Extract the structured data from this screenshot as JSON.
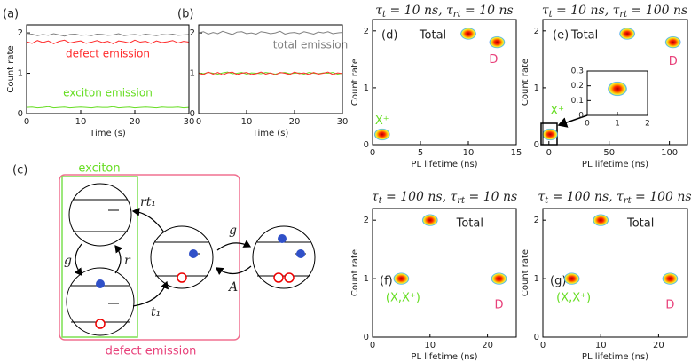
{
  "chart_data": [
    {
      "type": "line",
      "panel_label": "(a)",
      "xlabel": "Time (s)",
      "ylabel": "Count rate",
      "xlim": [
        0,
        30
      ],
      "ylim": [
        0,
        2.2
      ],
      "xticks": [
        0,
        10,
        20,
        30
      ],
      "yticks": [
        0,
        1,
        2
      ],
      "x": [
        0,
        1,
        2,
        3,
        4,
        5,
        6,
        7,
        8,
        9,
        10,
        11,
        12,
        13,
        14,
        15,
        16,
        17,
        18,
        19,
        20,
        21,
        22,
        23,
        24,
        25,
        26,
        27,
        28,
        29,
        30
      ],
      "series": [
        {
          "color": "#808080",
          "values": [
            1.95,
            1.97,
            1.93,
            1.96,
            1.94,
            1.98,
            1.95,
            1.92,
            1.96,
            1.97,
            1.94,
            1.95,
            1.93,
            1.97,
            1.96,
            1.94,
            1.95,
            1.98,
            1.93,
            1.95,
            1.96,
            1.94,
            1.97,
            1.95,
            1.93,
            1.96,
            1.95,
            1.97,
            1.94,
            1.95,
            1.96
          ]
        },
        {
          "name": "defect emission",
          "color": "#ff2a2a",
          "values": [
            1.78,
            1.74,
            1.81,
            1.76,
            1.8,
            1.73,
            1.79,
            1.82,
            1.75,
            1.78,
            1.8,
            1.74,
            1.77,
            1.81,
            1.76,
            1.79,
            1.73,
            1.8,
            1.78,
            1.75,
            1.82,
            1.77,
            1.79,
            1.74,
            1.8,
            1.76,
            1.78,
            1.81,
            1.75,
            1.79,
            1.77
          ]
        },
        {
          "name": "exciton emission",
          "color": "#66dd22",
          "values": [
            0.15,
            0.16,
            0.14,
            0.15,
            0.17,
            0.14,
            0.15,
            0.16,
            0.14,
            0.15,
            0.16,
            0.15,
            0.14,
            0.16,
            0.15,
            0.15,
            0.17,
            0.14,
            0.15,
            0.16,
            0.14,
            0.15,
            0.16,
            0.15,
            0.14,
            0.16,
            0.15,
            0.15,
            0.16,
            0.14,
            0.15
          ]
        }
      ]
    },
    {
      "type": "line",
      "panel_label": "(b)",
      "xlabel": "Time (s)",
      "xlim": [
        0,
        30
      ],
      "ylim": [
        0,
        2.2
      ],
      "xticks": [
        0,
        10,
        20,
        30
      ],
      "yticks": [
        0,
        1,
        2
      ],
      "x": [
        0,
        1,
        2,
        3,
        4,
        5,
        6,
        7,
        8,
        9,
        10,
        11,
        12,
        13,
        14,
        15,
        16,
        17,
        18,
        19,
        20,
        21,
        22,
        23,
        24,
        25,
        26,
        27,
        28,
        29,
        30
      ],
      "series": [
        {
          "name": "total emission",
          "color": "#808080",
          "values": [
            2.0,
            2.03,
            1.97,
            2.01,
            1.98,
            2.04,
            2.0,
            1.96,
            2.02,
            2.03,
            1.98,
            2.0,
            1.97,
            2.03,
            2.01,
            1.98,
            2.0,
            2.04,
            1.97,
            2.0,
            2.01,
            1.98,
            2.03,
            2.0,
            1.97,
            2.02,
            2.0,
            2.03,
            1.98,
            2.0,
            2.01
          ]
        },
        {
          "color": "#66dd22",
          "values": [
            1.01,
            0.99,
            1.02,
            1.0,
            0.98,
            1.01,
            1.03,
            0.99,
            1.0,
            1.02,
            0.98,
            1.01,
            1.0,
            0.99,
            1.02,
            1.0,
            0.98,
            1.01,
            1.02,
            0.99,
            1.0,
            1.01,
            0.98,
            1.02,
            1.0,
            0.99,
            1.01,
            1.0,
            1.02,
            0.98,
            1.0
          ]
        },
        {
          "color": "#ff2a2a",
          "values": [
            1.0,
            0.97,
            1.03,
            0.98,
            1.02,
            0.96,
            1.01,
            1.03,
            0.97,
            1.0,
            1.02,
            0.97,
            0.99,
            1.03,
            0.98,
            1.01,
            0.96,
            1.02,
            1.0,
            0.97,
            1.03,
            0.99,
            1.01,
            0.97,
            1.02,
            0.98,
            1.0,
            1.03,
            0.97,
            1.01,
            0.99
          ]
        }
      ]
    },
    {
      "type": "scatter",
      "panel_label": "(d)",
      "title_parts": [
        "τ",
        "t",
        " = 10 ns, ",
        "τ",
        "rt",
        " = 10 ns"
      ],
      "xlabel": "PL lifetime (ns)",
      "ylabel": "Count rate",
      "xlim": [
        0,
        15
      ],
      "ylim": [
        0,
        2.2
      ],
      "xticks": [
        0,
        5,
        10,
        15
      ],
      "yticks": [
        0,
        1,
        2
      ],
      "series": [
        {
          "name": "X⁺",
          "color": "#66dd22",
          "x": [
            1
          ],
          "values": [
            0.18
          ]
        },
        {
          "name": "Total",
          "color": "#222222",
          "x": [
            10
          ],
          "values": [
            1.95
          ]
        },
        {
          "name": "D",
          "color": "#e8407a",
          "x": [
            13
          ],
          "values": [
            1.8
          ]
        }
      ]
    },
    {
      "type": "scatter",
      "panel_label": "(e)",
      "title_parts": [
        "τ",
        "t",
        " = 10 ns, ",
        "τ",
        "rt",
        " = 100 ns"
      ],
      "xlabel": "PL lifetime (ns)",
      "ylabel": "Count rate",
      "xlim": [
        -5,
        115
      ],
      "ylim": [
        0,
        2.2
      ],
      "xticks": [
        0,
        50,
        100
      ],
      "yticks": [
        0,
        1,
        2
      ],
      "series": [
        {
          "name": "X⁺",
          "color": "#66dd22",
          "x": [
            1
          ],
          "values": [
            0.18
          ]
        },
        {
          "name": "Total",
          "color": "#222222",
          "x": [
            65
          ],
          "values": [
            1.95
          ]
        },
        {
          "name": "D",
          "color": "#e8407a",
          "x": [
            103
          ],
          "values": [
            1.8
          ]
        }
      ]
    },
    {
      "type": "scatter",
      "xlim": [
        0,
        2
      ],
      "ylim": [
        0,
        0.3
      ],
      "xticks": [
        0,
        1,
        2
      ],
      "yticks": [
        0,
        0.1,
        0.2,
        0.3
      ],
      "series": [
        {
          "x": [
            1
          ],
          "values": [
            0.18
          ]
        }
      ]
    },
    {
      "type": "scatter",
      "panel_label": "(f)",
      "title_parts": [
        "τ",
        "t",
        " = 100 ns, ",
        "τ",
        "rt",
        " = 10 ns"
      ],
      "xlabel": "PL lifetime (ns)",
      "ylabel": "Count rate",
      "xlim": [
        0,
        25
      ],
      "ylim": [
        0,
        2.2
      ],
      "xticks": [
        0,
        10,
        20
      ],
      "yticks": [
        0,
        1,
        2
      ],
      "series": [
        {
          "name": "(X,X⁺)",
          "color": "#66dd22",
          "x": [
            5
          ],
          "values": [
            1.0
          ]
        },
        {
          "name": "Total",
          "color": "#222222",
          "x": [
            10
          ],
          "values": [
            2.0
          ]
        },
        {
          "name": "D",
          "color": "#e8407a",
          "x": [
            22
          ],
          "values": [
            1.0
          ]
        }
      ]
    },
    {
      "type": "scatter",
      "panel_label": "(g)",
      "title_parts": [
        "τ",
        "t",
        " = 100 ns, ",
        "τ",
        "rt",
        " = 100 ns"
      ],
      "xlabel": "PL lifetime (ns)",
      "ylabel": "Count rate",
      "xlim": [
        0,
        25
      ],
      "ylim": [
        0,
        2.2
      ],
      "xticks": [
        0,
        10,
        20
      ],
      "yticks": [
        0,
        1,
        2
      ],
      "series": [
        {
          "name": "(X,X⁺)",
          "color": "#66dd22",
          "x": [
            5
          ],
          "values": [
            1.0
          ]
        },
        {
          "name": "Total",
          "color": "#222222",
          "x": [
            10
          ],
          "values": [
            2.0
          ]
        },
        {
          "name": "D",
          "color": "#e8407a",
          "x": [
            22
          ],
          "values": [
            1.0
          ]
        }
      ]
    }
  ],
  "diagram": {
    "panel_label": "(c)",
    "exciton": "exciton",
    "defect_emission": "defect emission",
    "rates": [
      "rt₁",
      "g",
      "r",
      "t₁",
      "g",
      "A"
    ]
  }
}
